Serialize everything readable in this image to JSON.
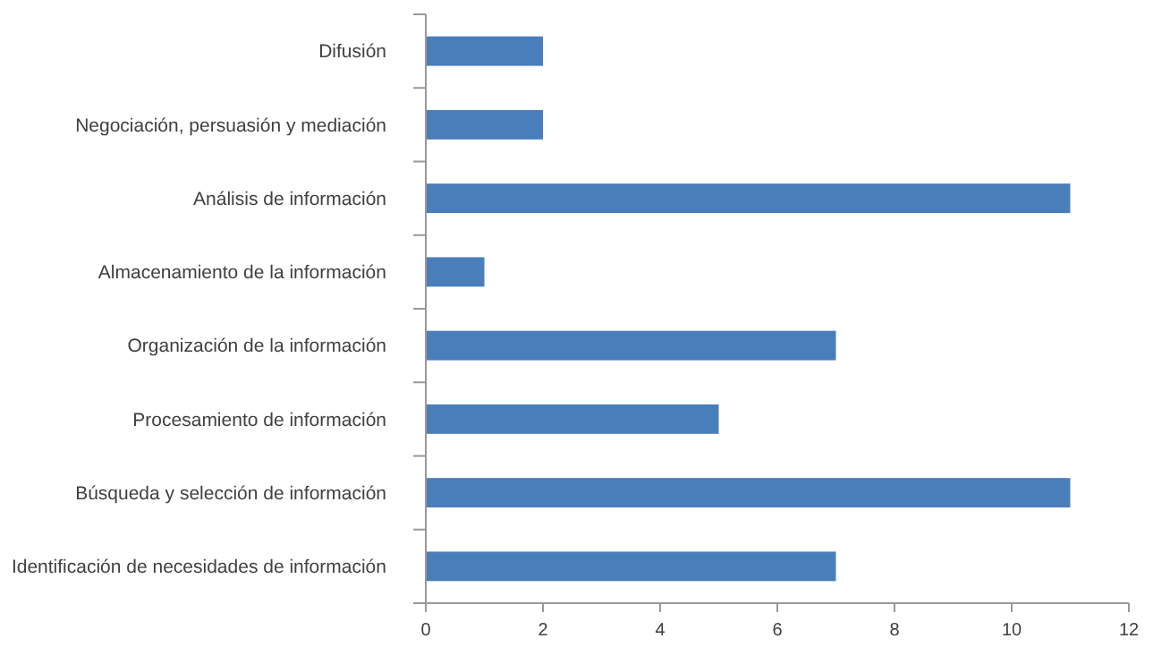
{
  "chart_data": {
    "type": "bar",
    "orientation": "horizontal",
    "categories": [
      "Difusión",
      "Negociación, persuasión y mediación",
      "Análisis de información",
      "Almacenamiento de la información",
      "Organización de la información",
      "Procesamiento de información",
      "Búsqueda y selección de información",
      "Identificación de necesidades de información"
    ],
    "values": [
      2,
      2,
      11,
      1,
      7,
      5,
      11,
      7
    ],
    "color": "#4a7ebb",
    "xlim": [
      0,
      12
    ],
    "xticks": [
      0,
      2,
      4,
      6,
      8,
      10,
      12
    ],
    "grid": false
  }
}
